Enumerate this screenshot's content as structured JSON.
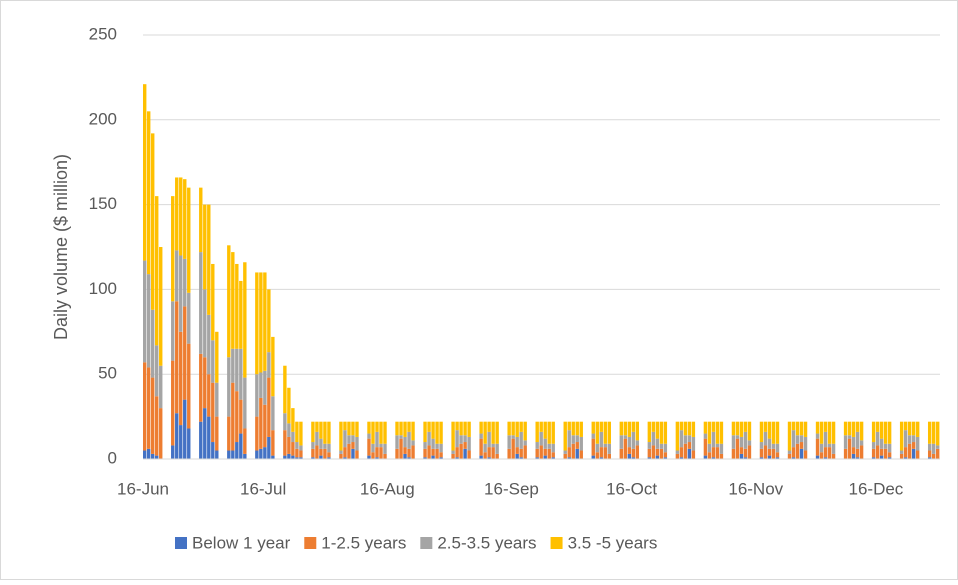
{
  "chart_data": {
    "type": "stacked-bar",
    "y_label": "Daily volume ($ million)",
    "ylim": [
      0,
      250
    ],
    "yticks": [
      0,
      50,
      100,
      150,
      200,
      250
    ],
    "grid": true,
    "xlim": [
      "16-Jun",
      "31-Dec"
    ],
    "xticks": [
      "16-Jun",
      "16-Jul",
      "16-Aug",
      "16-Sep",
      "16-Oct",
      "16-Nov",
      "16-Dec"
    ],
    "legend": "bottom",
    "x": [
      "16-Jun",
      "17-Jun",
      "18-Jun",
      "19-Jun",
      "20-Jun",
      "23-Jun",
      "24-Jun",
      "25-Jun",
      "26-Jun",
      "27-Jun",
      "30-Jun",
      "1-Jul",
      "2-Jul",
      "3-Jul",
      "4-Jul",
      "7-Jul",
      "8-Jul",
      "9-Jul",
      "10-Jul",
      "11-Jul",
      "14-Jul",
      "15-Jul",
      "16-Jul",
      "17-Jul",
      "18-Jul",
      "21-Jul",
      "22-Jul",
      "23-Jul",
      "24-Jul",
      "25-Jul",
      "28-Jul",
      "29-Jul",
      "30-Jul",
      "31-Jul",
      "1-Aug",
      "4-Aug",
      "5-Aug",
      "6-Aug",
      "7-Aug",
      "8-Aug",
      "11-Aug",
      "12-Aug",
      "13-Aug",
      "14-Aug",
      "15-Aug",
      "18-Aug",
      "19-Aug",
      "20-Aug",
      "21-Aug",
      "22-Aug",
      "25-Aug",
      "26-Aug",
      "27-Aug",
      "28-Aug",
      "29-Aug",
      "1-Sep",
      "2-Sep",
      "3-Sep",
      "4-Sep",
      "5-Sep",
      "8-Sep",
      "9-Sep",
      "10-Sep",
      "11-Sep",
      "12-Sep",
      "15-Sep",
      "16-Sep",
      "17-Sep",
      "18-Sep",
      "19-Sep",
      "22-Sep",
      "23-Sep",
      "24-Sep",
      "25-Sep",
      "26-Sep",
      "29-Sep",
      "30-Sep",
      "1-Oct",
      "2-Oct",
      "3-Oct",
      "6-Oct",
      "7-Oct",
      "8-Oct",
      "9-Oct",
      "10-Oct",
      "13-Oct",
      "14-Oct",
      "15-Oct",
      "16-Oct",
      "17-Oct",
      "20-Oct",
      "21-Oct",
      "22-Oct",
      "23-Oct",
      "24-Oct",
      "27-Oct",
      "28-Oct",
      "29-Oct",
      "30-Oct",
      "31-Oct",
      "3-Nov",
      "4-Nov",
      "5-Nov",
      "6-Nov",
      "7-Nov",
      "10-Nov",
      "11-Nov",
      "12-Nov",
      "13-Nov",
      "14-Nov",
      "17-Nov",
      "18-Nov",
      "19-Nov",
      "20-Nov",
      "21-Nov",
      "24-Nov",
      "25-Nov",
      "26-Nov",
      "27-Nov",
      "28-Nov",
      "1-Dec",
      "2-Dec",
      "3-Dec",
      "4-Dec",
      "5-Dec",
      "8-Dec",
      "9-Dec",
      "10-Dec",
      "11-Dec",
      "12-Dec",
      "15-Dec",
      "16-Dec",
      "17-Dec",
      "18-Dec",
      "19-Dec",
      "22-Dec",
      "23-Dec",
      "24-Dec",
      "25-Dec",
      "26-Dec",
      "29-Dec",
      "30-Dec",
      "31-Dec"
    ],
    "series": [
      {
        "name": "Below 1 year",
        "color": "#4472c4",
        "values": [
          5,
          6,
          3,
          2,
          0,
          8,
          27,
          20,
          35,
          18,
          22,
          30,
          25,
          10,
          5,
          5,
          5,
          10,
          15,
          3,
          5,
          6,
          7,
          13,
          2,
          2,
          3,
          2,
          1,
          1,
          1,
          0,
          2,
          0,
          1,
          0,
          1,
          0,
          6,
          0,
          2,
          0,
          1,
          0,
          0,
          0,
          0,
          3,
          1,
          0,
          1,
          0,
          2,
          0,
          1,
          0,
          1,
          0,
          6,
          0,
          2,
          0,
          1,
          0,
          0,
          0,
          0,
          3,
          1,
          0,
          1,
          0,
          2,
          0,
          1,
          0,
          1,
          0,
          6,
          0,
          2,
          0,
          1,
          0,
          0,
          0,
          0,
          3,
          1,
          0,
          1,
          0,
          2,
          0,
          1,
          0,
          1,
          0,
          6,
          0,
          2,
          0,
          1,
          0,
          0,
          0,
          0,
          3,
          1,
          0,
          1,
          0,
          2,
          0,
          1,
          0,
          1,
          0,
          6,
          0,
          2,
          0,
          1,
          0,
          0,
          0,
          0,
          3,
          1,
          0,
          1,
          0,
          2,
          0,
          1,
          0,
          1,
          0,
          6,
          0,
          1,
          0,
          0
        ]
      },
      {
        "name": "1-2.5 years",
        "color": "#ed7d31",
        "values": [
          52,
          48,
          45,
          35,
          30,
          50,
          66,
          55,
          55,
          50,
          40,
          30,
          25,
          35,
          20,
          20,
          40,
          30,
          20,
          15,
          20,
          30,
          25,
          35,
          15,
          15,
          10,
          8,
          5,
          4,
          5,
          8,
          4,
          6,
          3,
          3,
          6,
          9,
          4,
          5,
          10,
          4,
          6,
          7,
          3,
          6,
          12,
          4,
          5,
          8,
          5,
          8,
          4,
          6,
          3,
          3,
          6,
          9,
          4,
          5,
          10,
          4,
          6,
          7,
          3,
          6,
          12,
          4,
          5,
          8,
          5,
          8,
          4,
          6,
          3,
          3,
          6,
          9,
          4,
          5,
          10,
          4,
          6,
          7,
          3,
          6,
          12,
          4,
          5,
          8,
          5,
          8,
          4,
          6,
          3,
          3,
          6,
          9,
          4,
          5,
          10,
          4,
          6,
          7,
          3,
          6,
          12,
          4,
          5,
          8,
          5,
          8,
          4,
          6,
          3,
          3,
          6,
          9,
          4,
          5,
          10,
          4,
          6,
          7,
          3,
          6,
          12,
          4,
          5,
          8,
          5,
          8,
          4,
          6,
          3,
          3,
          6,
          9,
          4,
          5,
          4,
          3,
          6
        ]
      },
      {
        "name": "2.5-3.5 years",
        "color": "#a5a5a5",
        "values": [
          60,
          55,
          40,
          30,
          25,
          35,
          30,
          45,
          28,
          30,
          60,
          40,
          35,
          25,
          20,
          35,
          20,
          25,
          30,
          30,
          25,
          15,
          20,
          15,
          20,
          10,
          8,
          6,
          4,
          3,
          4,
          8,
          6,
          3,
          5,
          2,
          10,
          5,
          4,
          8,
          3,
          5,
          9,
          2,
          6,
          8,
          2,
          6,
          10,
          3,
          4,
          8,
          6,
          3,
          5,
          2,
          10,
          5,
          4,
          8,
          3,
          5,
          9,
          2,
          6,
          8,
          2,
          6,
          10,
          3,
          4,
          8,
          6,
          3,
          5,
          2,
          10,
          5,
          4,
          8,
          3,
          5,
          9,
          2,
          6,
          8,
          2,
          6,
          10,
          3,
          4,
          8,
          6,
          3,
          5,
          2,
          10,
          5,
          4,
          8,
          3,
          5,
          9,
          2,
          6,
          8,
          2,
          6,
          10,
          3,
          4,
          8,
          6,
          3,
          5,
          2,
          10,
          5,
          4,
          8,
          3,
          5,
          9,
          2,
          6,
          8,
          2,
          6,
          10,
          3,
          4,
          8,
          6,
          3,
          5,
          2,
          10,
          5,
          4,
          8,
          4,
          6,
          2
        ]
      },
      {
        "name": "3.5 -5 years",
        "color": "#ffc000",
        "values": [
          104,
          96,
          104,
          88,
          70,
          62,
          43,
          46,
          47,
          62,
          38,
          50,
          65,
          45,
          30,
          66,
          57,
          50,
          40,
          68,
          60,
          59,
          58,
          37,
          35,
          28,
          21,
          14,
          12,
          14,
          12,
          6,
          10,
          13,
          13,
          17,
          5,
          8,
          8,
          9,
          7,
          13,
          6,
          13,
          13,
          8,
          8,
          9,
          6,
          11,
          12,
          6,
          10,
          13,
          13,
          17,
          5,
          8,
          8,
          9,
          7,
          13,
          6,
          13,
          13,
          8,
          8,
          9,
          6,
          11,
          12,
          6,
          10,
          13,
          13,
          17,
          5,
          8,
          8,
          9,
          7,
          13,
          6,
          13,
          13,
          8,
          8,
          9,
          6,
          11,
          12,
          6,
          10,
          13,
          13,
          17,
          5,
          8,
          8,
          9,
          7,
          13,
          6,
          13,
          13,
          8,
          8,
          9,
          6,
          11,
          12,
          6,
          10,
          13,
          13,
          17,
          5,
          8,
          8,
          9,
          7,
          13,
          6,
          13,
          13,
          8,
          8,
          9,
          6,
          11,
          12,
          6,
          10,
          13,
          13,
          17,
          5,
          8,
          8,
          9,
          13,
          13,
          14
        ]
      }
    ]
  }
}
